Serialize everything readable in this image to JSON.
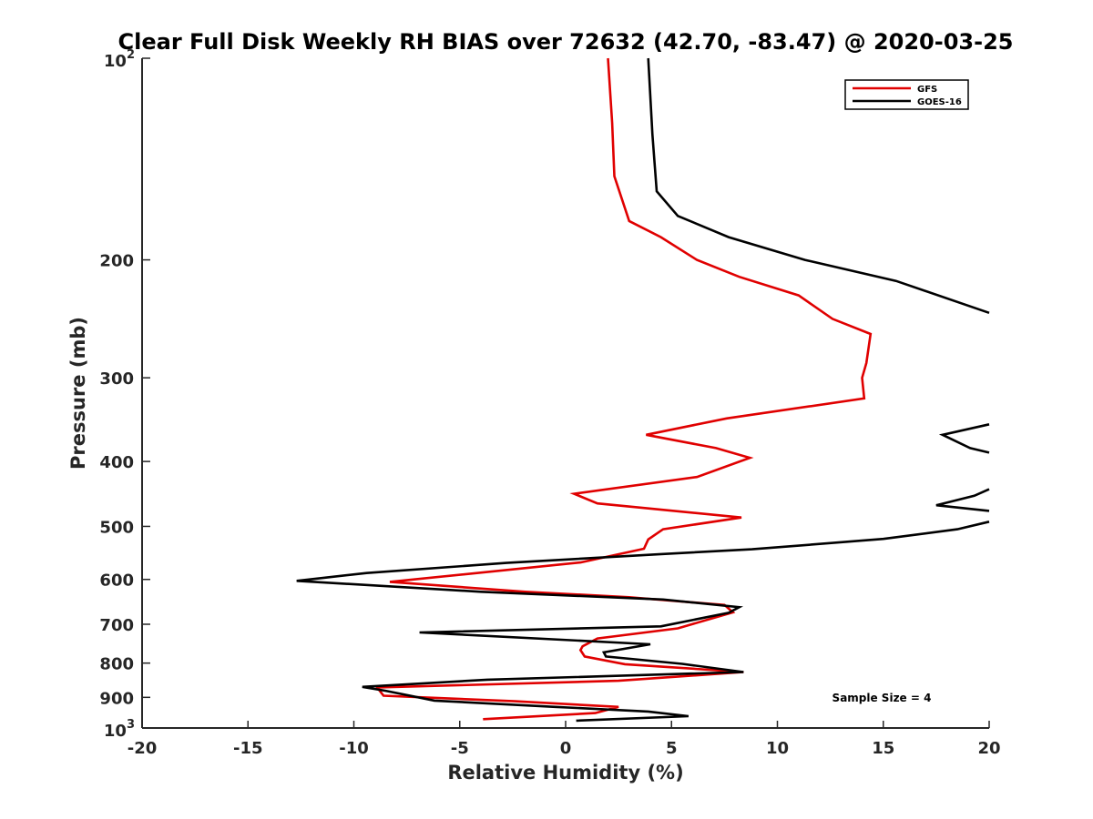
{
  "chart_data": {
    "type": "line",
    "title": "Clear Full Disk Weekly RH BIAS over 72632 (42.70, -83.47) @ 2020-03-25",
    "xlabel": "Relative Humidity (%)",
    "ylabel": "Pressure (mb)",
    "xlim": [
      -20,
      20
    ],
    "ylim": [
      100,
      1000
    ],
    "yscale": "log",
    "y_reversed": true,
    "x_ticks": [
      -20,
      -15,
      -10,
      -5,
      0,
      5,
      10,
      15,
      20
    ],
    "x_tick_labels": [
      "-20",
      "-15",
      "-10",
      "-5",
      "0",
      "5",
      "10",
      "15",
      "20"
    ],
    "y_ticks": [
      200,
      300,
      400,
      500,
      600,
      700,
      800,
      900
    ],
    "y_tick_labels": [
      "200",
      "300",
      "400",
      "500",
      "600",
      "700",
      "800",
      "900"
    ],
    "y_end_labels": [
      {
        "value": 100,
        "base": "10",
        "exp": "2"
      },
      {
        "value": 1000,
        "base": "10",
        "exp": "3"
      }
    ],
    "grid": false,
    "legend_position": "top-right",
    "annotation": "Sample Size = 4",
    "series": [
      {
        "name": "GFS",
        "color": "#e00000",
        "points": [
          [
            2.0,
            100
          ],
          [
            2.2,
            125
          ],
          [
            2.3,
            150
          ],
          [
            3.0,
            175
          ],
          [
            4.5,
            185
          ],
          [
            6.2,
            200
          ],
          [
            8.2,
            212
          ],
          [
            11.0,
            226
          ],
          [
            12.6,
            245
          ],
          [
            14.4,
            258
          ],
          [
            14.2,
            285
          ],
          [
            14.0,
            300
          ],
          [
            14.1,
            322
          ],
          [
            7.6,
            345
          ],
          [
            3.8,
            365
          ],
          [
            7.1,
            382
          ],
          [
            8.7,
            395
          ],
          [
            6.2,
            422
          ],
          [
            0.4,
            447
          ],
          [
            1.5,
            462
          ],
          [
            8.3,
            485
          ],
          [
            4.6,
            505
          ],
          [
            3.9,
            523
          ],
          [
            3.7,
            540
          ],
          [
            0.7,
            566
          ],
          [
            -8.3,
            605
          ],
          [
            -1.9,
            626
          ],
          [
            3.0,
            638
          ],
          [
            7.5,
            655
          ],
          [
            7.9,
            672
          ],
          [
            5.3,
            710
          ],
          [
            1.5,
            735
          ],
          [
            0.8,
            755
          ],
          [
            0.7,
            765
          ],
          [
            0.9,
            782
          ],
          [
            2.8,
            803
          ],
          [
            8.4,
            825
          ],
          [
            2.5,
            850
          ],
          [
            -8.9,
            870
          ],
          [
            -8.6,
            895
          ],
          [
            -2.4,
            912
          ],
          [
            2.5,
            930
          ],
          [
            1.4,
            950
          ],
          [
            -3.9,
            970
          ]
        ]
      },
      {
        "name": "GOES-16",
        "color": "#000000",
        "points": [
          [
            3.9,
            100
          ],
          [
            4.1,
            130
          ],
          [
            4.3,
            158
          ],
          [
            5.3,
            172
          ],
          [
            7.7,
            185
          ],
          [
            11.3,
            200
          ],
          [
            15.6,
            215
          ],
          [
            20.0,
            240
          ],
          [
            null,
            null
          ],
          [
            20.0,
            352
          ],
          [
            17.8,
            365
          ],
          [
            19.1,
            382
          ],
          [
            20.0,
            388
          ],
          [
            null,
            null
          ],
          [
            20.0,
            440
          ],
          [
            19.3,
            450
          ],
          [
            17.5,
            465
          ],
          [
            20.0,
            474
          ],
          [
            null,
            null
          ],
          [
            20.0,
            492
          ],
          [
            18.5,
            505
          ],
          [
            15.0,
            522
          ],
          [
            8.8,
            541
          ],
          [
            4.5,
            550
          ],
          [
            -2.8,
            567
          ],
          [
            -9.4,
            587
          ],
          [
            -12.7,
            603
          ],
          [
            -4.0,
            626
          ],
          [
            4.6,
            643
          ],
          [
            8.2,
            660
          ],
          [
            7.7,
            673
          ],
          [
            4.5,
            705
          ],
          [
            -6.9,
            720
          ],
          [
            4.0,
            750
          ],
          [
            1.8,
            771
          ],
          [
            1.9,
            782
          ],
          [
            5.5,
            802
          ],
          [
            8.4,
            825
          ],
          [
            -3.7,
            847
          ],
          [
            -9.6,
            868
          ],
          [
            -8.5,
            880
          ],
          [
            -6.2,
            910
          ],
          [
            -0.5,
            930
          ],
          [
            3.9,
            945
          ],
          [
            5.8,
            960
          ],
          [
            0.5,
            975
          ]
        ]
      }
    ]
  }
}
